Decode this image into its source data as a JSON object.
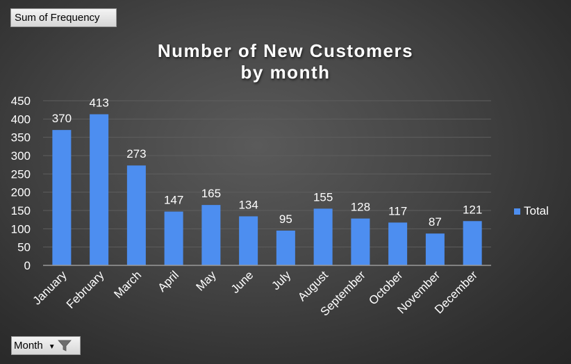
{
  "pivot": {
    "value_field_label": "Sum of Frequency",
    "axis_field_label": "Month",
    "axis_field_dropdown_icon": "dropdown-arrow",
    "axis_field_filter_icon": "funnel-filter"
  },
  "colors": {
    "bar": "#4d8ef0",
    "text": "#ffffff",
    "gridline": "#5e5e5e"
  },
  "chart_data": {
    "type": "bar",
    "title_lines": [
      "Number of New Customers",
      "by month"
    ],
    "categories": [
      "January",
      "February",
      "March",
      "April",
      "May",
      "June",
      "July",
      "August",
      "September",
      "October",
      "November",
      "December"
    ],
    "series": [
      {
        "name": "Total",
        "values": [
          370,
          413,
          273,
          147,
          165,
          134,
          95,
          155,
          128,
          117,
          87,
          121
        ]
      }
    ],
    "ylim": [
      0,
      450
    ],
    "yticks": [
      0,
      50,
      100,
      150,
      200,
      250,
      300,
      350,
      400,
      450
    ],
    "grid": true,
    "data_labels": true,
    "legend_position": "right"
  }
}
